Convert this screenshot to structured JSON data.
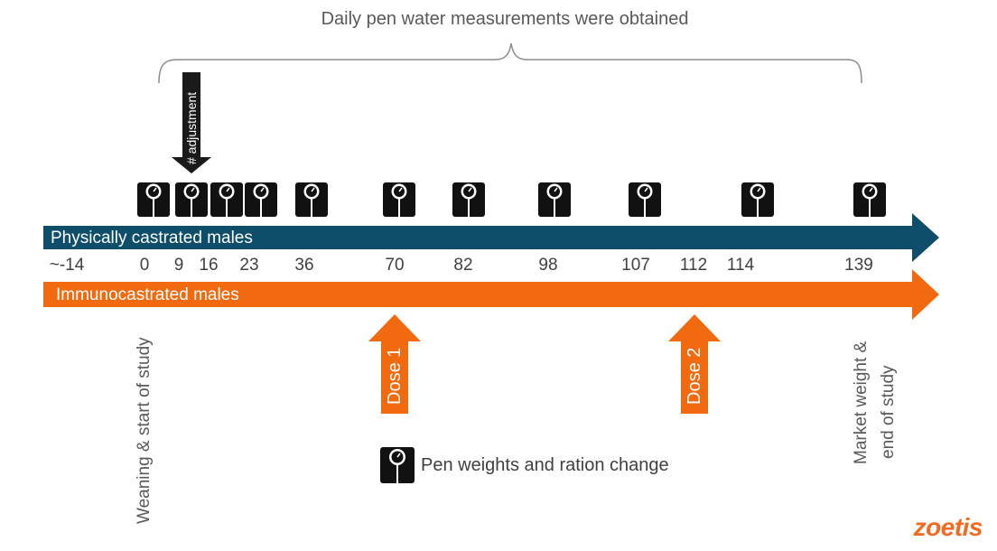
{
  "header": {
    "bracket_label": "Daily pen water measurements were obtained"
  },
  "adjustment_arrow": {
    "label": "# adjustment"
  },
  "bands": {
    "physical": {
      "label": "Physically castrated males",
      "color": "#0e4e6b"
    },
    "immuno": {
      "label": "Immunocastrated males",
      "color": "#f26a0f"
    }
  },
  "days": [
    "~-14",
    "0",
    "9",
    "16",
    "23",
    "36",
    "70",
    "82",
    "98",
    "107",
    "112",
    "114",
    "139"
  ],
  "scale_days": [
    "0",
    "9",
    "16",
    "23",
    "36",
    "70",
    "82",
    "98",
    "107",
    "114",
    "139"
  ],
  "doses": [
    {
      "label": "Dose 1",
      "day": "70"
    },
    {
      "label": "Dose 2",
      "day": "112"
    }
  ],
  "milestones": {
    "start": "Weaning & start of study",
    "end_line1": "Market weight &",
    "end_line2": "end of study"
  },
  "legend": {
    "icon": "scale-icon",
    "label": "Pen weights and ration change"
  },
  "brand": {
    "name": "zoetis",
    "color": "#f26a21"
  }
}
